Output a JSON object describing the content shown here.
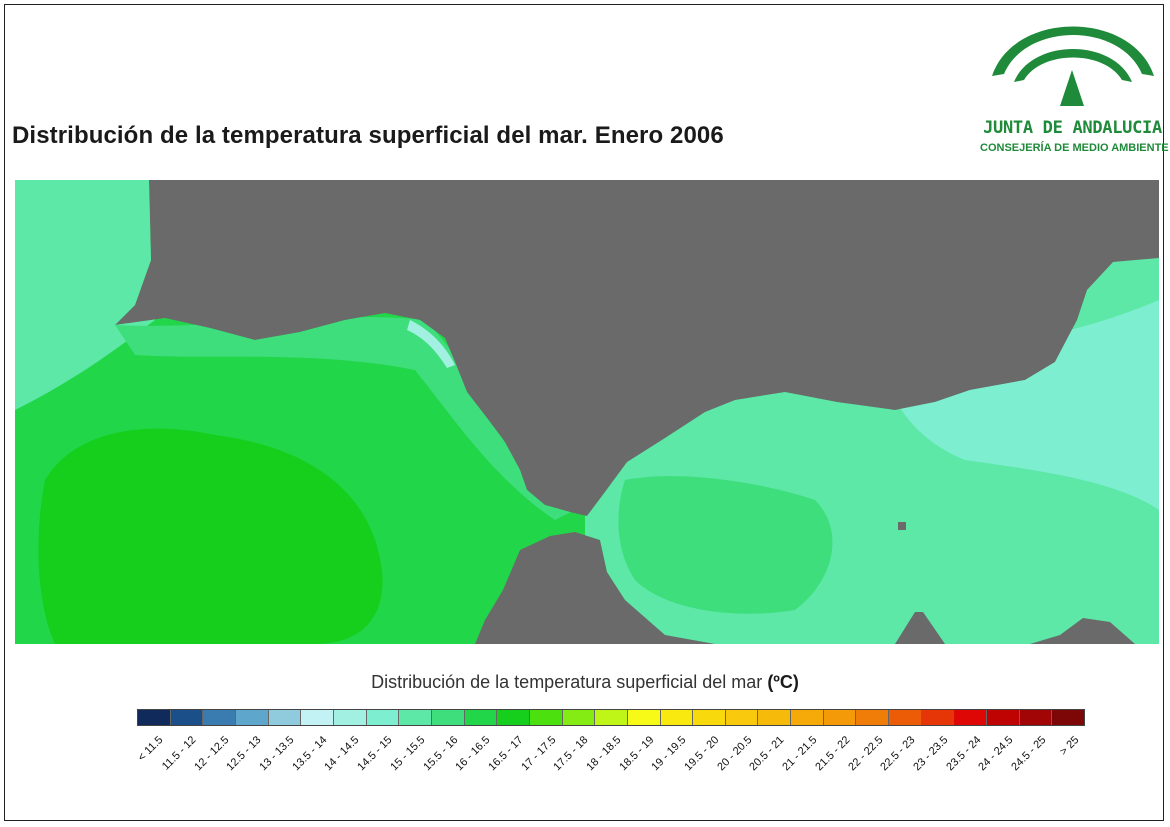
{
  "title": "Distribución de la temperatura superficial del mar. Enero 2006",
  "logo": {
    "name": "JUNTA DE ANDALUCIA",
    "subtitle": "CONSEJERÍA DE MEDIO AMBIENTE",
    "color": "#1f8a3a"
  },
  "legend": {
    "title": "Distribución de la temperatura superficial del mar",
    "unit": "(ºC)",
    "classes": [
      {
        "label": "< 11.5",
        "color": "#102a5c"
      },
      {
        "label": "11.5 - 12",
        "color": "#1b4f8a"
      },
      {
        "label": "12 - 12.5",
        "color": "#3a7bb0"
      },
      {
        "label": "12.5 - 13",
        "color": "#5fa6cc"
      },
      {
        "label": "13 - 13.5",
        "color": "#8fcbdd"
      },
      {
        "label": "13.5 - 14",
        "color": "#c2f2f4"
      },
      {
        "label": "14 - 14.5",
        "color": "#a2f0e2"
      },
      {
        "label": "14.5 - 15",
        "color": "#7deed0"
      },
      {
        "label": "15 - 15.5",
        "color": "#5de8a8"
      },
      {
        "label": "15.5 - 16",
        "color": "#3ede7c"
      },
      {
        "label": "16 - 16.5",
        "color": "#22d64a"
      },
      {
        "label": "16.5 - 17",
        "color": "#15cf1c"
      },
      {
        "label": "17 - 17.5",
        "color": "#4be00e"
      },
      {
        "label": "17.5 - 18",
        "color": "#84ec12"
      },
      {
        "label": "18 - 18.5",
        "color": "#bff517"
      },
      {
        "label": "18.5 - 19",
        "color": "#f7f916"
      },
      {
        "label": "19 - 19.5",
        "color": "#f9e90f"
      },
      {
        "label": "19.5 - 20",
        "color": "#f8d90c"
      },
      {
        "label": "20 - 20.5",
        "color": "#f8c90c"
      },
      {
        "label": "20.5 - 21",
        "color": "#f6ba0b"
      },
      {
        "label": "21 - 21.5",
        "color": "#f5aa0a"
      },
      {
        "label": "21.5 - 22",
        "color": "#f49a09"
      },
      {
        "label": "22 - 22.5",
        "color": "#f07d08"
      },
      {
        "label": "22.5 - 23",
        "color": "#ec5c07"
      },
      {
        "label": "23 - 23.5",
        "color": "#e63607"
      },
      {
        "label": "23.5 - 24",
        "color": "#df0606"
      },
      {
        "label": "24 - 24.5",
        "color": "#bf0303"
      },
      {
        "label": "24.5 - 25",
        "color": "#a10505"
      },
      {
        "label": "> 25",
        "color": "#7d0606"
      }
    ]
  },
  "map": {
    "land_color": "#6a6a6a",
    "dominant_classes_west": [
      "16.5 - 17",
      "16 - 16.5",
      "15.5 - 16"
    ],
    "dominant_classes_east": [
      "15.5 - 16",
      "15 - 15.5",
      "14.5 - 15"
    ]
  }
}
